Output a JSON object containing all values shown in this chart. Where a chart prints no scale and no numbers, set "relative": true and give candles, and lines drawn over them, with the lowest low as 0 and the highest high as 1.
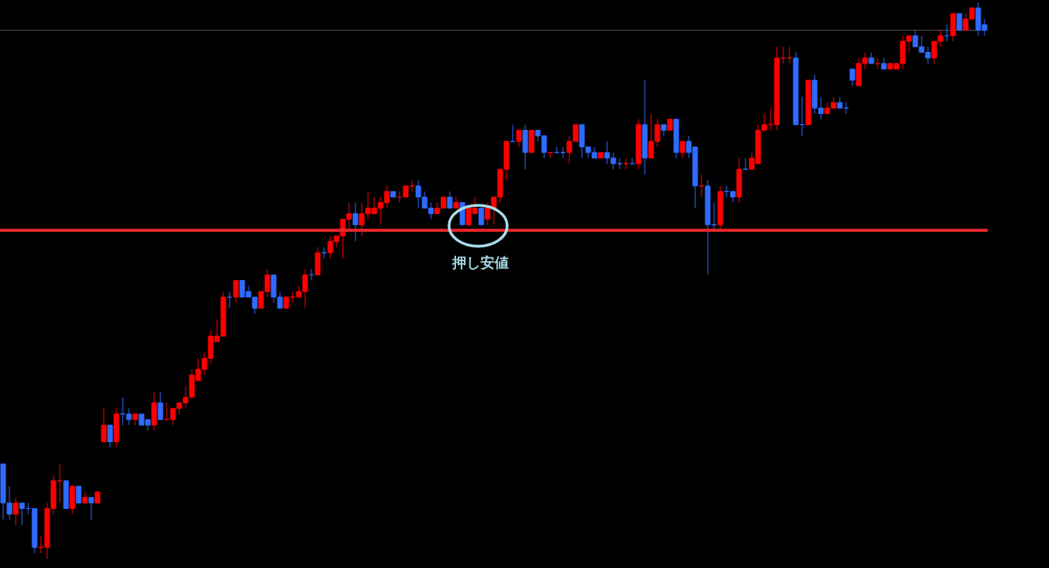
{
  "chart_data": {
    "type": "candlestick",
    "relative": true,
    "categories": [
      null,
      null,
      null,
      null,
      null,
      null,
      null,
      null,
      null,
      null,
      null,
      null,
      null,
      null,
      null,
      null,
      null,
      null,
      null,
      null,
      null,
      null,
      null,
      null,
      null,
      null,
      null,
      null,
      null,
      null,
      null,
      null,
      null,
      null,
      null,
      null,
      null,
      null,
      null,
      null,
      null,
      null,
      null,
      null,
      null,
      null,
      null,
      null,
      null,
      null,
      null,
      null,
      null,
      null,
      null,
      null,
      null,
      null,
      null,
      null,
      null,
      null,
      null,
      null,
      null,
      null,
      null,
      null,
      null,
      null,
      null,
      null,
      null,
      null,
      null,
      null,
      null,
      null,
      null,
      null,
      null,
      null,
      null,
      null,
      null,
      null,
      null,
      null,
      null,
      null,
      null,
      null,
      null,
      null,
      null,
      null,
      null,
      null,
      null,
      null,
      null,
      null,
      null,
      null,
      null,
      null,
      null,
      null,
      null,
      null,
      null,
      null,
      null,
      null,
      null,
      null,
      null,
      null,
      null,
      null,
      null,
      null,
      null,
      null,
      null,
      null,
      null,
      null,
      null,
      null,
      null,
      null,
      null,
      null,
      null,
      null,
      null,
      null,
      null,
      null,
      null,
      null,
      null,
      null,
      null,
      null,
      null,
      null,
      null,
      null,
      null,
      null,
      null,
      null,
      null,
      null,
      null
    ],
    "ohlc": [
      [
        0.17,
        0.17,
        0.07,
        0.1
      ],
      [
        0.1,
        0.13,
        0.07,
        0.08
      ],
      [
        0.08,
        0.11,
        0.06,
        0.1
      ],
      [
        0.1,
        0.1,
        0.06,
        0.09
      ],
      [
        0.09,
        0.1,
        0.08,
        0.09
      ],
      [
        0.09,
        0.09,
        0.01,
        0.02
      ],
      [
        0.02,
        0.04,
        0.01,
        0.02
      ],
      [
        0.02,
        0.1,
        0,
        0.09
      ],
      [
        0.09,
        0.15,
        0.08,
        0.14
      ],
      [
        0.14,
        0.17,
        0.1,
        0.14
      ],
      [
        0.14,
        0.14,
        0.09,
        0.09
      ],
      [
        0.09,
        0.13,
        0.08,
        0.13
      ],
      [
        0.13,
        0.13,
        0.1,
        0.1
      ],
      [
        0.1,
        0.12,
        0.1,
        0.11
      ],
      [
        0.11,
        0.11,
        0.07,
        0.1
      ],
      [
        0.1,
        0.12,
        0.1,
        0.12
      ],
      [
        0.21,
        0.27,
        0.21,
        0.24
      ],
      [
        0.24,
        0.24,
        0.2,
        0.21
      ],
      [
        0.21,
        0.27,
        0.2,
        0.26
      ],
      [
        0.26,
        0.29,
        0.24,
        0.26
      ],
      [
        0.26,
        0.27,
        0.24,
        0.25
      ],
      [
        0.25,
        0.26,
        0.24,
        0.26
      ],
      [
        0.26,
        0.26,
        0.24,
        0.24
      ],
      [
        0.25,
        0.25,
        0.23,
        0.24
      ],
      [
        0.24,
        0.3,
        0.23,
        0.28
      ],
      [
        0.28,
        0.3,
        0.25,
        0.25
      ],
      [
        0.25,
        0.28,
        0.25,
        0.25
      ],
      [
        0.25,
        0.27,
        0.24,
        0.27
      ],
      [
        0.27,
        0.28,
        0.26,
        0.28
      ],
      [
        0.28,
        0.31,
        0.27,
        0.29
      ],
      [
        0.29,
        0.34,
        0.29,
        0.33
      ],
      [
        0.32,
        0.36,
        0.32,
        0.34
      ],
      [
        0.34,
        0.37,
        0.33,
        0.36
      ],
      [
        0.36,
        0.41,
        0.35,
        0.4
      ],
      [
        0.39,
        0.43,
        0.39,
        0.4
      ],
      [
        0.4,
        0.48,
        0.4,
        0.47
      ],
      [
        0.47,
        0.48,
        0.45,
        0.47
      ],
      [
        0.47,
        0.5,
        0.46,
        0.5
      ],
      [
        0.5,
        0.5,
        0.47,
        0.47
      ],
      [
        0.48,
        0.49,
        0.47,
        0.47
      ],
      [
        0.47,
        0.47,
        0.44,
        0.45
      ],
      [
        0.45,
        0.48,
        0.45,
        0.48
      ],
      [
        0.48,
        0.52,
        0.47,
        0.51
      ],
      [
        0.51,
        0.51,
        0.46,
        0.47
      ],
      [
        0.47,
        0.48,
        0.45,
        0.45
      ],
      [
        0.45,
        0.47,
        0.45,
        0.47
      ],
      [
        0.47,
        0.48,
        0.46,
        0.47
      ],
      [
        0.47,
        0.49,
        0.47,
        0.48
      ],
      [
        0.48,
        0.52,
        0.45,
        0.51
      ],
      [
        0.51,
        0.52,
        0.5,
        0.51
      ],
      [
        0.51,
        0.56,
        0.51,
        0.55
      ],
      [
        0.55,
        0.56,
        0.54,
        0.55
      ],
      [
        0.55,
        0.58,
        0.54,
        0.57
      ],
      [
        0.57,
        0.58,
        0.56,
        0.58
      ],
      [
        0.58,
        0.61,
        0.54,
        0.61
      ],
      [
        0.61,
        0.64,
        0.59,
        0.62
      ],
      [
        0.62,
        0.64,
        0.57,
        0.6
      ],
      [
        0.6,
        0.64,
        0.58,
        0.62
      ],
      [
        0.62,
        0.66,
        0.61,
        0.63
      ],
      [
        0.62,
        0.65,
        0.62,
        0.63
      ],
      [
        0.63,
        0.65,
        0.6,
        0.64
      ],
      [
        0.64,
        0.67,
        0.63,
        0.66
      ],
      [
        0.66,
        0.66,
        0.65,
        0.65
      ],
      [
        0.65,
        0.66,
        0.64,
        0.65
      ],
      [
        0.65,
        0.67,
        0.65,
        0.67
      ],
      [
        0.67,
        0.68,
        0.66,
        0.67
      ],
      [
        0.67,
        0.68,
        0.63,
        0.65
      ],
      [
        0.65,
        0.66,
        0.63,
        0.63
      ],
      [
        0.63,
        0.64,
        0.61,
        0.62
      ],
      [
        0.62,
        0.64,
        0.62,
        0.63
      ],
      [
        0.63,
        0.65,
        0.63,
        0.65
      ],
      [
        0.65,
        0.66,
        0.63,
        0.63
      ],
      [
        0.63,
        0.65,
        0.63,
        0.64
      ],
      [
        0.64,
        0.64,
        0.6,
        0.6
      ],
      [
        0.6,
        0.63,
        0.6,
        0.63
      ],
      [
        0.62,
        0.65,
        0.62,
        0.63
      ],
      [
        0.63,
        0.63,
        0.6,
        0.6
      ],
      [
        0.61,
        0.64,
        0.6,
        0.63
      ],
      [
        0.63,
        0.65,
        0.6,
        0.65
      ],
      [
        0.65,
        0.7,
        0.64,
        0.7
      ],
      [
        0.7,
        0.75,
        0.68,
        0.75
      ],
      [
        0.75,
        0.78,
        0.75,
        0.75
      ],
      [
        0.75,
        0.77,
        0.74,
        0.77
      ],
      [
        0.77,
        0.78,
        0.7,
        0.73
      ],
      [
        0.73,
        0.77,
        0.73,
        0.77
      ],
      [
        0.77,
        0.77,
        0.75,
        0.76
      ],
      [
        0.76,
        0.76,
        0.72,
        0.73
      ],
      [
        0.73,
        0.73,
        0.72,
        0.73
      ],
      [
        0.73,
        0.74,
        0.73,
        0.73
      ],
      [
        0.73,
        0.74,
        0.72,
        0.73
      ],
      [
        0.73,
        0.76,
        0.71,
        0.75
      ],
      [
        0.75,
        0.78,
        0.75,
        0.78
      ],
      [
        0.78,
        0.78,
        0.72,
        0.74
      ],
      [
        0.74,
        0.74,
        0.72,
        0.73
      ],
      [
        0.73,
        0.74,
        0.72,
        0.72
      ],
      [
        0.72,
        0.73,
        0.72,
        0.73
      ],
      [
        0.73,
        0.75,
        0.71,
        0.72
      ],
      [
        0.72,
        0.73,
        0.7,
        0.71
      ],
      [
        0.71,
        0.72,
        0.7,
        0.71
      ],
      [
        0.71,
        0.72,
        0.7,
        0.71
      ],
      [
        0.71,
        0.72,
        0.71,
        0.71
      ],
      [
        0.71,
        0.79,
        0.7,
        0.78
      ],
      [
        0.78,
        0.86,
        0.69,
        0.72
      ],
      [
        0.72,
        0.8,
        0.72,
        0.75
      ],
      [
        0.75,
        0.79,
        0.74,
        0.78
      ],
      [
        0.78,
        0.78,
        0.76,
        0.77
      ],
      [
        0.77,
        0.79,
        0.77,
        0.79
      ],
      [
        0.79,
        0.79,
        0.72,
        0.73
      ],
      [
        0.73,
        0.75,
        0.72,
        0.75
      ],
      [
        0.75,
        0.76,
        0.72,
        0.73
      ],
      [
        0.74,
        0.74,
        0.63,
        0.67
      ],
      [
        0.67,
        0.69,
        0.65,
        0.67
      ],
      [
        0.67,
        0.68,
        0.51,
        0.6
      ],
      [
        0.6,
        0.64,
        0.59,
        0.6
      ],
      [
        0.6,
        0.67,
        0.59,
        0.66
      ],
      [
        0.66,
        0.67,
        0.65,
        0.66
      ],
      [
        0.66,
        0.66,
        0.64,
        0.65
      ],
      [
        0.65,
        0.72,
        0.64,
        0.7
      ],
      [
        0.7,
        0.72,
        0.7,
        0.7
      ],
      [
        0.7,
        0.73,
        0.7,
        0.72
      ],
      [
        0.71,
        0.78,
        0.71,
        0.77
      ],
      [
        0.77,
        0.8,
        0.77,
        0.78
      ],
      [
        0.78,
        0.81,
        0.77,
        0.78
      ],
      [
        0.78,
        0.92,
        0.77,
        0.9
      ],
      [
        0.9,
        0.92,
        0.89,
        0.9
      ],
      [
        0.9,
        0.92,
        0.89,
        0.9
      ],
      [
        0.9,
        0.91,
        0.78,
        0.78
      ],
      [
        0.78,
        0.83,
        0.76,
        0.78
      ],
      [
        0.78,
        0.86,
        0.78,
        0.86
      ],
      [
        0.86,
        0.87,
        0.8,
        0.81
      ],
      [
        0.81,
        0.83,
        0.79,
        0.8
      ],
      [
        0.8,
        0.82,
        0.8,
        0.81
      ],
      [
        0.81,
        0.83,
        0.81,
        0.82
      ],
      [
        0.82,
        0.83,
        0.81,
        0.81
      ],
      [
        0.81,
        0.82,
        0.8,
        0.81
      ],
      [
        0.88,
        0.88,
        0.85,
        0.86
      ],
      [
        0.85,
        0.9,
        0.85,
        0.89
      ],
      [
        0.89,
        0.91,
        0.88,
        0.9
      ],
      [
        0.9,
        0.91,
        0.89,
        0.89
      ],
      [
        0.89,
        0.9,
        0.88,
        0.89
      ],
      [
        0.89,
        0.9,
        0.88,
        0.88
      ],
      [
        0.88,
        0.89,
        0.88,
        0.89
      ],
      [
        0.88,
        0.89,
        0.88,
        0.89
      ],
      [
        0.89,
        0.94,
        0.88,
        0.93
      ],
      [
        0.93,
        0.94,
        0.91,
        0.94
      ],
      [
        0.94,
        0.95,
        0.92,
        0.92
      ],
      [
        0.92,
        0.94,
        0.91,
        0.91
      ],
      [
        0.91,
        0.92,
        0.89,
        0.9
      ],
      [
        0.9,
        0.93,
        0.89,
        0.93
      ],
      [
        0.93,
        0.95,
        0.92,
        0.94
      ],
      [
        0.94,
        0.96,
        0.93,
        0.94
      ],
      [
        0.94,
        0.98,
        0.93,
        0.98
      ],
      [
        0.98,
        0.98,
        0.95,
        0.95
      ],
      [
        0.95,
        0.98,
        0.95,
        0.97
      ],
      [
        0.97,
        0.99,
        0.97,
        0.99
      ],
      [
        0.99,
        1,
        0.94,
        0.95
      ],
      [
        0.96,
        0.97,
        0.94,
        0.95
      ]
    ],
    "colors": [
      "#2f6bff",
      "#2f6bff",
      "#ff0000",
      "#2f6bff",
      "#2f6bff",
      "#2f6bff",
      "#ff0000",
      "#ff0000",
      "#ff0000",
      "#ff0000",
      "#2f6bff",
      "#ff0000",
      "#2f6bff",
      "#ff0000",
      "#2f6bff",
      "#ff0000",
      "#ff0000",
      "#2f6bff",
      "#ff0000",
      "#2f6bff",
      "#2f6bff",
      "#ff0000",
      "#2f6bff",
      "#2f6bff",
      "#ff0000",
      "#2f6bff",
      "#ff0000",
      "#ff0000",
      "#ff0000",
      "#ff0000",
      "#ff0000",
      "#ff0000",
      "#ff0000",
      "#ff0000",
      "#ff0000",
      "#ff0000",
      "#2f6bff",
      "#ff0000",
      "#2f6bff",
      "#2f6bff",
      "#2f6bff",
      "#ff0000",
      "#ff0000",
      "#2f6bff",
      "#2f6bff",
      "#ff0000",
      "#ff0000",
      "#ff0000",
      "#ff0000",
      "#2f6bff",
      "#ff0000",
      "#2f6bff",
      "#ff0000",
      "#ff0000",
      "#ff0000",
      "#ff0000",
      "#2f6bff",
      "#ff0000",
      "#ff0000",
      "#ff0000",
      "#ff0000",
      "#ff0000",
      "#2f6bff",
      "#ff0000",
      "#ff0000",
      "#ff0000",
      "#2f6bff",
      "#2f6bff",
      "#2f6bff",
      "#ff0000",
      "#ff0000",
      "#2f6bff",
      "#ff0000",
      "#2f6bff",
      "#ff0000",
      "#ff0000",
      "#2f6bff",
      "#ff0000",
      "#ff0000",
      "#ff0000",
      "#ff0000",
      "#2f6bff",
      "#ff0000",
      "#2f6bff",
      "#ff0000",
      "#2f6bff",
      "#2f6bff",
      "#ff0000",
      "#2f6bff",
      "#2f6bff",
      "#ff0000",
      "#ff0000",
      "#2f6bff",
      "#2f6bff",
      "#2f6bff",
      "#ff0000",
      "#2f6bff",
      "#2f6bff",
      "#2f6bff",
      "#ff0000",
      "#2f6bff",
      "#ff0000",
      "#2f6bff",
      "#ff0000",
      "#ff0000",
      "#2f6bff",
      "#ff0000",
      "#2f6bff",
      "#ff0000",
      "#2f6bff",
      "#2f6bff",
      "#ff0000",
      "#2f6bff",
      "#2f6bff",
      "#ff0000",
      "#2f6bff",
      "#2f6bff",
      "#ff0000",
      "#2f6bff",
      "#ff0000",
      "#ff0000",
      "#ff0000",
      "#ff0000",
      "#ff0000",
      "#ff0000",
      "#ff0000",
      "#2f6bff",
      "#2f6bff",
      "#ff0000",
      "#2f6bff",
      "#2f6bff",
      "#ff0000",
      "#ff0000",
      "#2f6bff",
      "#2f6bff",
      "#2f6bff",
      "#ff0000",
      "#ff0000",
      "#2f6bff",
      "#ff0000",
      "#2f6bff",
      "#ff0000",
      "#ff0000",
      "#ff0000",
      "#ff0000",
      "#2f6bff",
      "#2f6bff",
      "#2f6bff",
      "#ff0000",
      "#ff0000",
      "#2f6bff",
      "#ff0000",
      "#2f6bff",
      "#ff0000",
      "#ff0000",
      "#2f6bff",
      "#2f6bff"
    ],
    "ref_lines": [
      {
        "axis": "y",
        "value": 0.95,
        "color": "#555555"
      },
      {
        "axis": "y",
        "value": 0.59,
        "color": "#e8262a",
        "line_style": "solid"
      }
    ],
    "annotations": [
      "押し安値"
    ]
  }
}
